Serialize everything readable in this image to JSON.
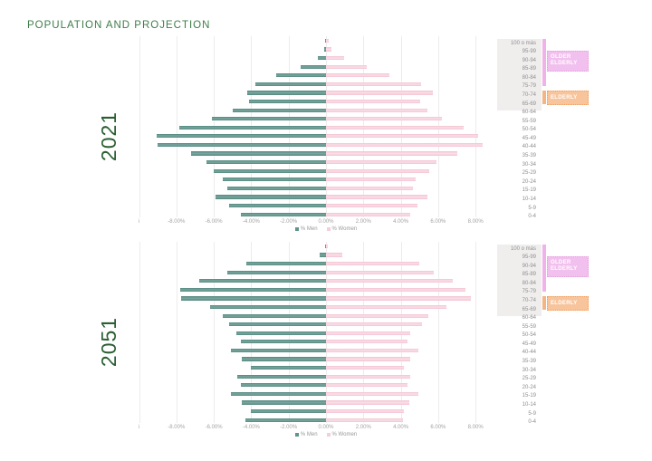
{
  "page": {
    "title": "POPULATION AND PROJECTION"
  },
  "colors": {
    "men_bar": "#5f958d",
    "women_bar": "#f6ccd8",
    "title_green": "#3e7d49",
    "year_green": "#2a5f32",
    "grid_grey": "#ececec",
    "label_grey": "#8f8f8f",
    "age_panel_grey": "#f0eded",
    "older_elderly_pink": "#f2c0ee",
    "elderly_orange": "#f7c49c"
  },
  "charts": [
    {
      "year": "2021"
    },
    {
      "year": "2051"
    }
  ],
  "x_tick_labels": [
    "i",
    "-8.00%",
    "-6.00%",
    "-4.00%",
    "-2.00%",
    "0.00%",
    "2.00%",
    "4.00%",
    "6.00%",
    "8.00%"
  ],
  "legend": {
    "men": "% Men",
    "women": "% Women"
  },
  "chart_data": [
    {
      "type": "bar",
      "subtype": "population_pyramid",
      "title": "2021",
      "categories": [
        "100 o más",
        "95-99",
        "90-94",
        "85-89",
        "80-84",
        "75-79",
        "70-74",
        "65-69",
        "60-64",
        "55-59",
        "50-54",
        "45-49",
        "40-44",
        "35-39",
        "30-34",
        "25-29",
        "20-24",
        "15-19",
        "10-14",
        "5-9",
        "0-4"
      ],
      "series": [
        {
          "name": "% Men",
          "side": "left",
          "values": [
            -0.05,
            -0.1,
            -0.45,
            -1.35,
            -2.65,
            -3.8,
            -4.2,
            -4.1,
            -5.0,
            -6.1,
            -7.85,
            -9.05,
            -9.0,
            -7.2,
            -6.4,
            -6.0,
            -5.5,
            -5.3,
            -5.9,
            -5.2,
            -4.55
          ]
        },
        {
          "name": "% Women",
          "side": "right",
          "values": [
            0.15,
            0.3,
            0.95,
            2.2,
            3.4,
            5.1,
            5.7,
            5.05,
            5.4,
            6.2,
            7.35,
            8.15,
            8.4,
            7.0,
            5.9,
            5.5,
            4.8,
            4.65,
            5.4,
            4.9,
            4.5
          ]
        }
      ],
      "xlabel": "",
      "ylabel": "",
      "xlim": [
        -10,
        8.5
      ],
      "x_ticks_percent": [
        -8,
        -6,
        -4,
        -2,
        0,
        2,
        4,
        6,
        8
      ],
      "grid": true,
      "legend_position": "bottom",
      "annotations": [
        {
          "label": "OLDER ELDERLY",
          "span": [
            "100 o más",
            "75-79"
          ]
        },
        {
          "label": "ELDERLY",
          "span": [
            "70-74",
            "65-69"
          ]
        }
      ]
    },
    {
      "type": "bar",
      "subtype": "population_pyramid",
      "title": "2051",
      "categories": [
        "100 o más",
        "95-99",
        "90-94",
        "85-89",
        "80-84",
        "75-79",
        "70-74",
        "65-69",
        "60-64",
        "55-59",
        "50-54",
        "45-49",
        "40-44",
        "35-39",
        "30-34",
        "25-29",
        "20-24",
        "15-19",
        "10-14",
        "5-9",
        "0-4"
      ],
      "series": [
        {
          "name": "% Men",
          "side": "left",
          "values": [
            -0.05,
            -0.35,
            -4.25,
            -5.3,
            -6.8,
            -7.8,
            -7.75,
            -6.2,
            -5.5,
            -5.2,
            -4.8,
            -4.55,
            -5.1,
            -4.5,
            -4.0,
            -4.75,
            -4.55,
            -5.1,
            -4.5,
            -4.0,
            -4.3
          ]
        },
        {
          "name": "% Women",
          "side": "right",
          "values": [
            0.1,
            0.85,
            5.0,
            5.75,
            6.8,
            7.45,
            7.75,
            6.45,
            5.45,
            5.15,
            4.5,
            4.35,
            4.95,
            4.5,
            4.15,
            4.5,
            4.35,
            4.95,
            4.45,
            4.15,
            4.1
          ]
        }
      ],
      "xlabel": "",
      "ylabel": "",
      "xlim": [
        -10,
        8.5
      ],
      "x_ticks_percent": [
        -8,
        -6,
        -4,
        -2,
        0,
        2,
        4,
        6,
        8
      ],
      "grid": true,
      "legend_position": "bottom",
      "annotations": [
        {
          "label": "OLDER ELDERLY",
          "span": [
            "100 o más",
            "75-79"
          ]
        },
        {
          "label": "ELDERLY",
          "span": [
            "70-74",
            "65-69"
          ]
        }
      ]
    }
  ]
}
